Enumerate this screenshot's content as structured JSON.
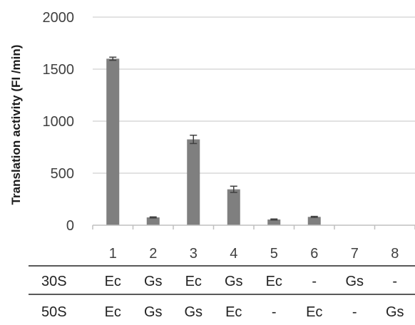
{
  "chart_data": {
    "type": "bar",
    "categories": [
      "1",
      "2",
      "3",
      "4",
      "5",
      "6",
      "7",
      "8"
    ],
    "values": [
      1600,
      75,
      825,
      345,
      55,
      80,
      0,
      0
    ],
    "errors": [
      15,
      5,
      40,
      30,
      5,
      5,
      0,
      0
    ],
    "ylabel": "Translation activity (FI /min)",
    "ylim": [
      0,
      2000
    ],
    "yticks": [
      0,
      500,
      1000,
      1500,
      2000
    ],
    "grid": true,
    "bar_color": "#7f7f7f",
    "grid_color": "#d9d9d9",
    "table": {
      "rows": [
        {
          "label": "30S",
          "cells": [
            "Ec",
            "Gs",
            "Ec",
            "Gs",
            "Ec",
            "-",
            "Gs",
            "-"
          ]
        },
        {
          "label": "50S",
          "cells": [
            "Ec",
            "Gs",
            "Gs",
            "Ec",
            "-",
            "Ec",
            "-",
            "Gs"
          ]
        }
      ]
    }
  }
}
